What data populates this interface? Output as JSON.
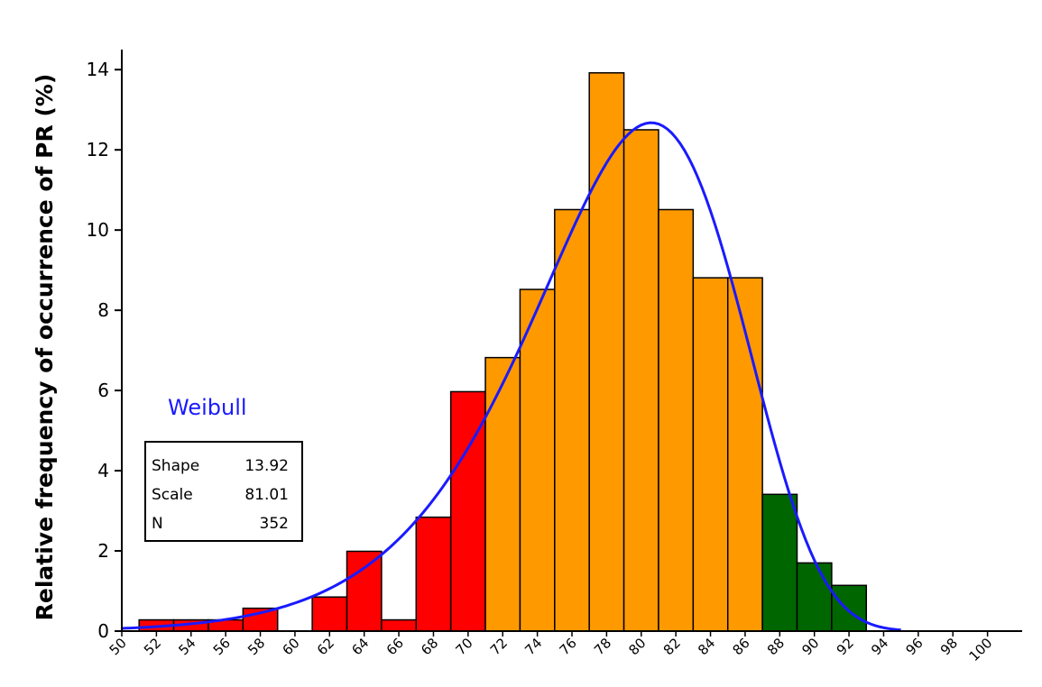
{
  "chart_data": {
    "type": "bar",
    "ylabel": "Relative frequency of occurrence of PR (%)",
    "xlabel": "",
    "xlim": [
      50,
      102
    ],
    "ylim": [
      0,
      14.5
    ],
    "yticks": [
      "0",
      "2",
      "4",
      "6",
      "8",
      "10",
      "12",
      "14"
    ],
    "xticks": [
      "50",
      "52",
      "54",
      "56",
      "58",
      "60",
      "62",
      "64",
      "66",
      "68",
      "70",
      "72",
      "74",
      "76",
      "78",
      "80",
      "82",
      "84",
      "86",
      "88",
      "90",
      "92",
      "94",
      "96",
      "98",
      "100"
    ],
    "bin_width": 2,
    "colors": {
      "red": "#ff0000",
      "orange": "#ff9900",
      "green": "#006600",
      "curve": "#1a1aff"
    },
    "bars": [
      {
        "center": 52,
        "value": 0.28,
        "color": "red"
      },
      {
        "center": 54,
        "value": 0.28,
        "color": "red"
      },
      {
        "center": 56,
        "value": 0.28,
        "color": "red"
      },
      {
        "center": 58,
        "value": 0.57,
        "color": "red"
      },
      {
        "center": 62,
        "value": 0.85,
        "color": "red"
      },
      {
        "center": 64,
        "value": 1.99,
        "color": "red"
      },
      {
        "center": 66,
        "value": 0.28,
        "color": "red"
      },
      {
        "center": 68,
        "value": 2.84,
        "color": "red"
      },
      {
        "center": 70,
        "value": 5.97,
        "color": "red"
      },
      {
        "center": 72,
        "value": 6.82,
        "color": "orange"
      },
      {
        "center": 74,
        "value": 8.52,
        "color": "orange"
      },
      {
        "center": 76,
        "value": 10.51,
        "color": "orange"
      },
      {
        "center": 78,
        "value": 13.92,
        "color": "orange"
      },
      {
        "center": 80,
        "value": 12.5,
        "color": "orange"
      },
      {
        "center": 82,
        "value": 10.51,
        "color": "orange"
      },
      {
        "center": 84,
        "value": 8.81,
        "color": "orange"
      },
      {
        "center": 86,
        "value": 8.81,
        "color": "orange"
      },
      {
        "center": 88,
        "value": 3.41,
        "color": "green"
      },
      {
        "center": 90,
        "value": 1.7,
        "color": "green"
      },
      {
        "center": 92,
        "value": 1.14,
        "color": "green"
      }
    ],
    "series": [
      {
        "name": "Weibull",
        "type": "line",
        "distribution": "weibull",
        "shape": 13.92,
        "scale": 81.01
      }
    ],
    "legend": {
      "label": "Weibull",
      "position": "left",
      "stats": [
        {
          "name": "Shape",
          "value": "13.92"
        },
        {
          "name": "Scale",
          "value": "81.01"
        },
        {
          "name": "N",
          "value": "352"
        }
      ]
    }
  }
}
